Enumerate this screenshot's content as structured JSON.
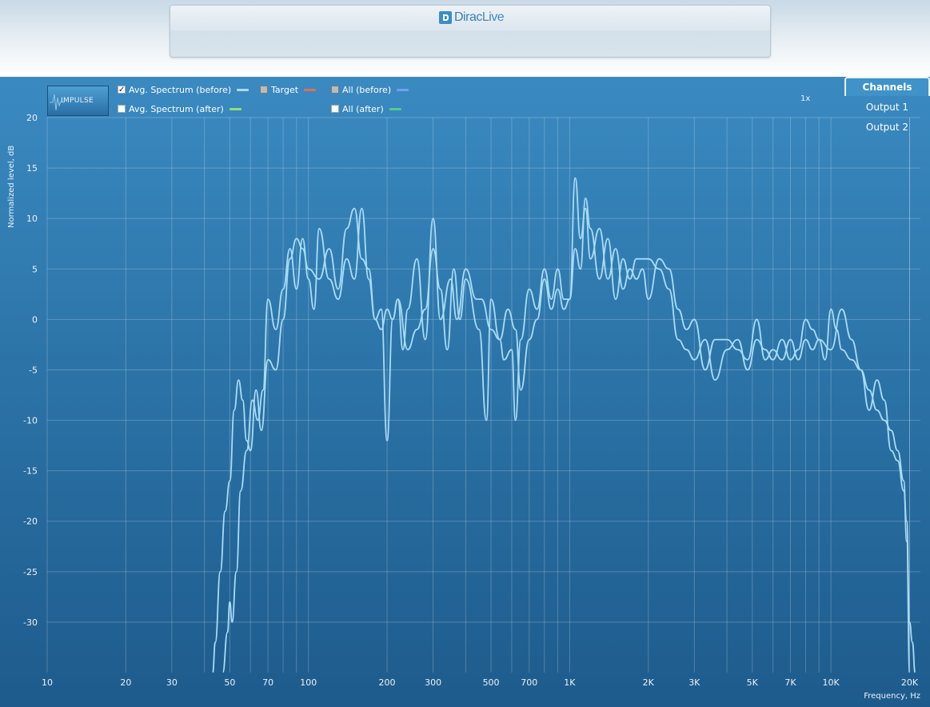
{
  "app": {
    "logo_part1": "Dirac",
    "logo_part2": "Live"
  },
  "toolbar": {
    "impulse_label": "IMPULSE",
    "legend": [
      {
        "label": "Avg. Spectrum (before)",
        "checked": true,
        "color": "#a8dcf7"
      },
      {
        "label": "Avg. Spectrum (after)",
        "checked": false,
        "color": "#8ee07a"
      },
      {
        "label": "Target",
        "checked": false,
        "color": "#e07050"
      },
      {
        "label": "All (before)",
        "checked": false,
        "color": "#6ea2f0"
      },
      {
        "label": "All (after)",
        "checked": false,
        "color": "#4fcf8c"
      }
    ],
    "zoom": "1x"
  },
  "channels": {
    "title": "Channels",
    "items": [
      "Output 1",
      "Output 2"
    ]
  },
  "chart_data": {
    "type": "line",
    "ylabel": "Normalized level, dB",
    "xlabel": "Frequency, Hz",
    "x_scale": "log",
    "xlim": [
      10,
      22000
    ],
    "ylim": [
      -35,
      20
    ],
    "x_ticks": [
      10,
      20,
      30,
      50,
      70,
      100,
      200,
      300,
      500,
      700,
      1000,
      2000,
      3000,
      5000,
      7000,
      10000,
      20000
    ],
    "x_tick_labels": [
      "10",
      "20",
      "30",
      "50",
      "70",
      "100",
      "200",
      "300",
      "500",
      "700",
      "1K",
      "2K",
      "3K",
      "5K",
      "7K",
      "10K",
      "20K"
    ],
    "y_ticks": [
      20,
      15,
      10,
      5,
      0,
      -5,
      -10,
      -15,
      -20,
      -25,
      -30
    ],
    "grid": true,
    "series": [
      {
        "color": "#a8dcf7",
        "points": [
          [
            43,
            -35
          ],
          [
            44,
            -32
          ],
          [
            46,
            -25
          ],
          [
            48,
            -19
          ],
          [
            50,
            -16
          ],
          [
            52,
            -9
          ],
          [
            54,
            -6
          ],
          [
            56,
            -8
          ],
          [
            58,
            -12
          ],
          [
            60,
            -13
          ],
          [
            63,
            -7
          ],
          [
            66,
            -11
          ],
          [
            70,
            -4
          ],
          [
            75,
            -5
          ],
          [
            80,
            0
          ],
          [
            85,
            6
          ],
          [
            90,
            8
          ],
          [
            95,
            7
          ],
          [
            100,
            5
          ],
          [
            110,
            4
          ],
          [
            120,
            7
          ],
          [
            130,
            3
          ],
          [
            140,
            9
          ],
          [
            150,
            11
          ],
          [
            160,
            6
          ],
          [
            170,
            5
          ],
          [
            180,
            0
          ],
          [
            190,
            1
          ],
          [
            200,
            -12
          ],
          [
            210,
            0
          ],
          [
            220,
            2
          ],
          [
            240,
            -3
          ],
          [
            260,
            -1
          ],
          [
            280,
            1
          ],
          [
            300,
            7
          ],
          [
            320,
            3
          ],
          [
            340,
            -3
          ],
          [
            360,
            5
          ],
          [
            380,
            0
          ],
          [
            400,
            4
          ],
          [
            450,
            -1
          ],
          [
            480,
            -10
          ],
          [
            500,
            2
          ],
          [
            540,
            -2
          ],
          [
            560,
            -4
          ],
          [
            600,
            -3
          ],
          [
            620,
            -10
          ],
          [
            650,
            -2
          ],
          [
            700,
            3
          ],
          [
            750,
            1
          ],
          [
            800,
            5
          ],
          [
            850,
            2
          ],
          [
            900,
            5
          ],
          [
            950,
            2
          ],
          [
            1000,
            2
          ],
          [
            1050,
            14
          ],
          [
            1100,
            8
          ],
          [
            1150,
            11
          ],
          [
            1200,
            6
          ],
          [
            1300,
            9
          ],
          [
            1400,
            4
          ],
          [
            1500,
            7
          ],
          [
            1600,
            3
          ],
          [
            1700,
            5
          ],
          [
            1800,
            4
          ],
          [
            1900,
            5
          ],
          [
            2000,
            2
          ],
          [
            2200,
            6
          ],
          [
            2400,
            5
          ],
          [
            2600,
            1
          ],
          [
            2800,
            -1
          ],
          [
            3000,
            0
          ],
          [
            3300,
            -5
          ],
          [
            3600,
            -2
          ],
          [
            4000,
            -2
          ],
          [
            4400,
            -3
          ],
          [
            4800,
            -4
          ],
          [
            5200,
            0
          ],
          [
            5600,
            -4
          ],
          [
            6000,
            -3
          ],
          [
            6500,
            -4
          ],
          [
            7000,
            -2
          ],
          [
            7500,
            -4
          ],
          [
            8000,
            -2
          ],
          [
            8500,
            -3
          ],
          [
            9000,
            -2
          ],
          [
            10000,
            -3
          ],
          [
            11000,
            1
          ],
          [
            12000,
            -2
          ],
          [
            13000,
            -5
          ],
          [
            14000,
            -9
          ],
          [
            15000,
            -6
          ],
          [
            16000,
            -8
          ],
          [
            17000,
            -13
          ],
          [
            18000,
            -14
          ],
          [
            19000,
            -17
          ],
          [
            19500,
            -20
          ],
          [
            20000,
            -30
          ],
          [
            20500,
            -32
          ],
          [
            21000,
            -35
          ]
        ]
      },
      {
        "color": "#a8dcf7",
        "points": [
          [
            47,
            -35
          ],
          [
            49,
            -31
          ],
          [
            50,
            -28
          ],
          [
            51,
            -30
          ],
          [
            53,
            -25
          ],
          [
            55,
            -17
          ],
          [
            58,
            -13
          ],
          [
            61,
            -8
          ],
          [
            64,
            -10
          ],
          [
            67,
            -7
          ],
          [
            70,
            2
          ],
          [
            75,
            -1
          ],
          [
            80,
            3
          ],
          [
            85,
            7
          ],
          [
            90,
            3
          ],
          [
            95,
            8
          ],
          [
            100,
            4
          ],
          [
            105,
            1
          ],
          [
            110,
            9
          ],
          [
            120,
            4
          ],
          [
            130,
            2
          ],
          [
            140,
            6
          ],
          [
            150,
            4
          ],
          [
            160,
            11
          ],
          [
            170,
            4
          ],
          [
            180,
            0
          ],
          [
            190,
            -1
          ],
          [
            200,
            1
          ],
          [
            210,
            0
          ],
          [
            220,
            2
          ],
          [
            230,
            -3
          ],
          [
            240,
            1
          ],
          [
            260,
            6
          ],
          [
            280,
            -2
          ],
          [
            300,
            10
          ],
          [
            320,
            0
          ],
          [
            350,
            4
          ],
          [
            370,
            0
          ],
          [
            400,
            5
          ],
          [
            440,
            2
          ],
          [
            460,
            2
          ],
          [
            500,
            -1
          ],
          [
            540,
            -2
          ],
          [
            580,
            1
          ],
          [
            620,
            -1
          ],
          [
            650,
            -7
          ],
          [
            700,
            -2
          ],
          [
            750,
            0
          ],
          [
            800,
            4
          ],
          [
            850,
            1
          ],
          [
            900,
            3
          ],
          [
            950,
            1
          ],
          [
            1000,
            2
          ],
          [
            1050,
            7
          ],
          [
            1100,
            5
          ],
          [
            1150,
            12
          ],
          [
            1200,
            9
          ],
          [
            1300,
            4
          ],
          [
            1400,
            8
          ],
          [
            1500,
            2
          ],
          [
            1600,
            6
          ],
          [
            1700,
            4
          ],
          [
            1800,
            6
          ],
          [
            1900,
            6
          ],
          [
            2000,
            6
          ],
          [
            2200,
            5
          ],
          [
            2400,
            3
          ],
          [
            2600,
            -2
          ],
          [
            2800,
            -3
          ],
          [
            3000,
            -4
          ],
          [
            3300,
            -2
          ],
          [
            3600,
            -6
          ],
          [
            4000,
            -3
          ],
          [
            4400,
            -2
          ],
          [
            4800,
            -5
          ],
          [
            5200,
            -2
          ],
          [
            5600,
            -3
          ],
          [
            6000,
            -4
          ],
          [
            6500,
            -2
          ],
          [
            7000,
            -4
          ],
          [
            7500,
            -3
          ],
          [
            8000,
            0
          ],
          [
            8500,
            -1
          ],
          [
            9000,
            -2
          ],
          [
            9500,
            -4
          ],
          [
            10000,
            1
          ],
          [
            10500,
            -1
          ],
          [
            11000,
            -3
          ],
          [
            12000,
            -4
          ],
          [
            13000,
            -5
          ],
          [
            14000,
            -7
          ],
          [
            15000,
            -9
          ],
          [
            16000,
            -10
          ],
          [
            17000,
            -11
          ],
          [
            18000,
            -13
          ],
          [
            19000,
            -16
          ],
          [
            19500,
            -22
          ],
          [
            20000,
            -35
          ]
        ]
      }
    ]
  }
}
